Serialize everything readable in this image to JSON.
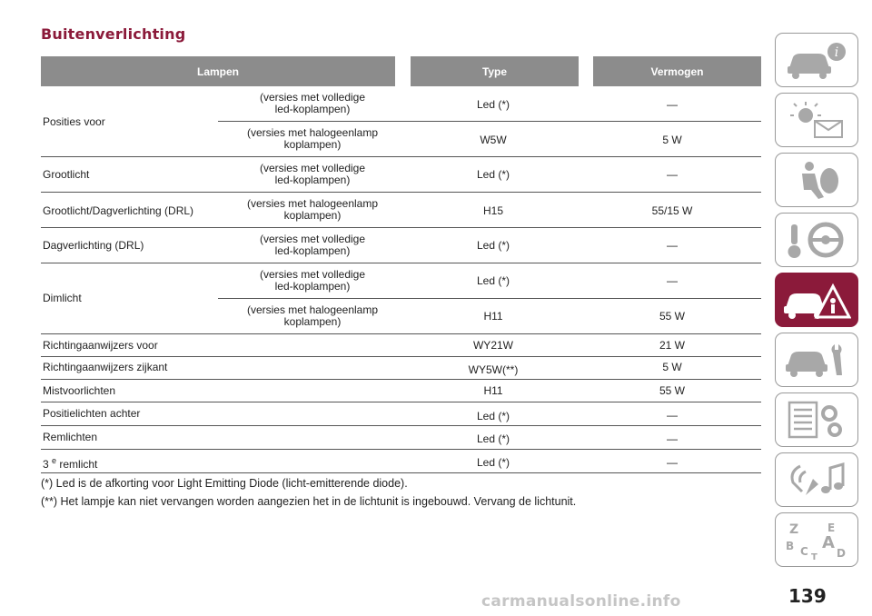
{
  "title": "Buitenverlichting",
  "headers": {
    "lamp": "Lampen",
    "type": "Type",
    "power": "Vermogen"
  },
  "rows": {
    "r1": {
      "lamp": "Posities voor",
      "var1": "(versies met volledige",
      "var2": "led-koplampen)",
      "type": "Led (*)",
      "power": "—"
    },
    "r2": {
      "var1": "(versies met halogeenlamp",
      "var2": "koplampen)",
      "type": "W5W",
      "power": "5 W"
    },
    "r3": {
      "lamp": "Grootlicht",
      "var1": "(versies met volledige",
      "var2": "led-koplampen)",
      "type": "Led (*)",
      "power": "—"
    },
    "r4": {
      "lamp": "Grootlicht/Dagverlichting (DRL)",
      "var1": "(versies met halogeenlamp",
      "var2": "koplampen)",
      "type": "H15",
      "power": "55/15 W"
    },
    "r5": {
      "lamp": "Dagverlichting (DRL)",
      "var1": "(versies met volledige",
      "var2": "led-koplampen)",
      "type": "Led (*)",
      "power": "—"
    },
    "r6": {
      "lamp": "Dimlicht",
      "var1": "(versies met volledige",
      "var2": "led-koplampen)",
      "type": "Led (*)",
      "power": "—"
    },
    "r7": {
      "var1": "(versies met halogeenlamp",
      "var2": "koplampen)",
      "type": "H11",
      "power": "55 W"
    },
    "r8": {
      "lamp": "Richtingaanwijzers voor",
      "type": "WY21W",
      "power": "21 W"
    },
    "r9": {
      "lamp": "Richtingaanwijzers zijkant",
      "type": "WY5W(**)",
      "power": "5 W"
    },
    "r10": {
      "lamp": "Mistvoorlichten",
      "type": "H11",
      "power": "55 W"
    },
    "r11": {
      "lamp": "Positielichten achter",
      "type": "Led (*)",
      "power": "—"
    },
    "r12": {
      "lamp": "Remlichten",
      "type": "Led (*)",
      "power": "—"
    },
    "r13": {
      "lamp_main": "3",
      "lamp_sup": "e",
      "lamp_rest": " remlicht",
      "type": "Led (*)",
      "power": "—"
    }
  },
  "footnotes": {
    "f1": "(*) Led is de afkorting voor Light Emitting Diode (licht-emitterende diode).",
    "f2": "(**) Het lampje kan niet vervangen worden aangezien het in de lichtunit is ingebouwd. Vervang de lichtunit."
  },
  "sidebar": {
    "tabs": [
      "car-info-icon",
      "warning-lights-icon",
      "safety-icon",
      "starting-driving-icon",
      "emergency-icon",
      "maintenance-icon",
      "technical-data-icon",
      "multimedia-icon",
      "index-icon"
    ],
    "active": "emergency-icon",
    "index_letters": [
      "Z",
      "E",
      "B",
      "A",
      "C",
      "D",
      "T"
    ]
  },
  "page_number": "139",
  "watermark": "carmanualsonline.info"
}
